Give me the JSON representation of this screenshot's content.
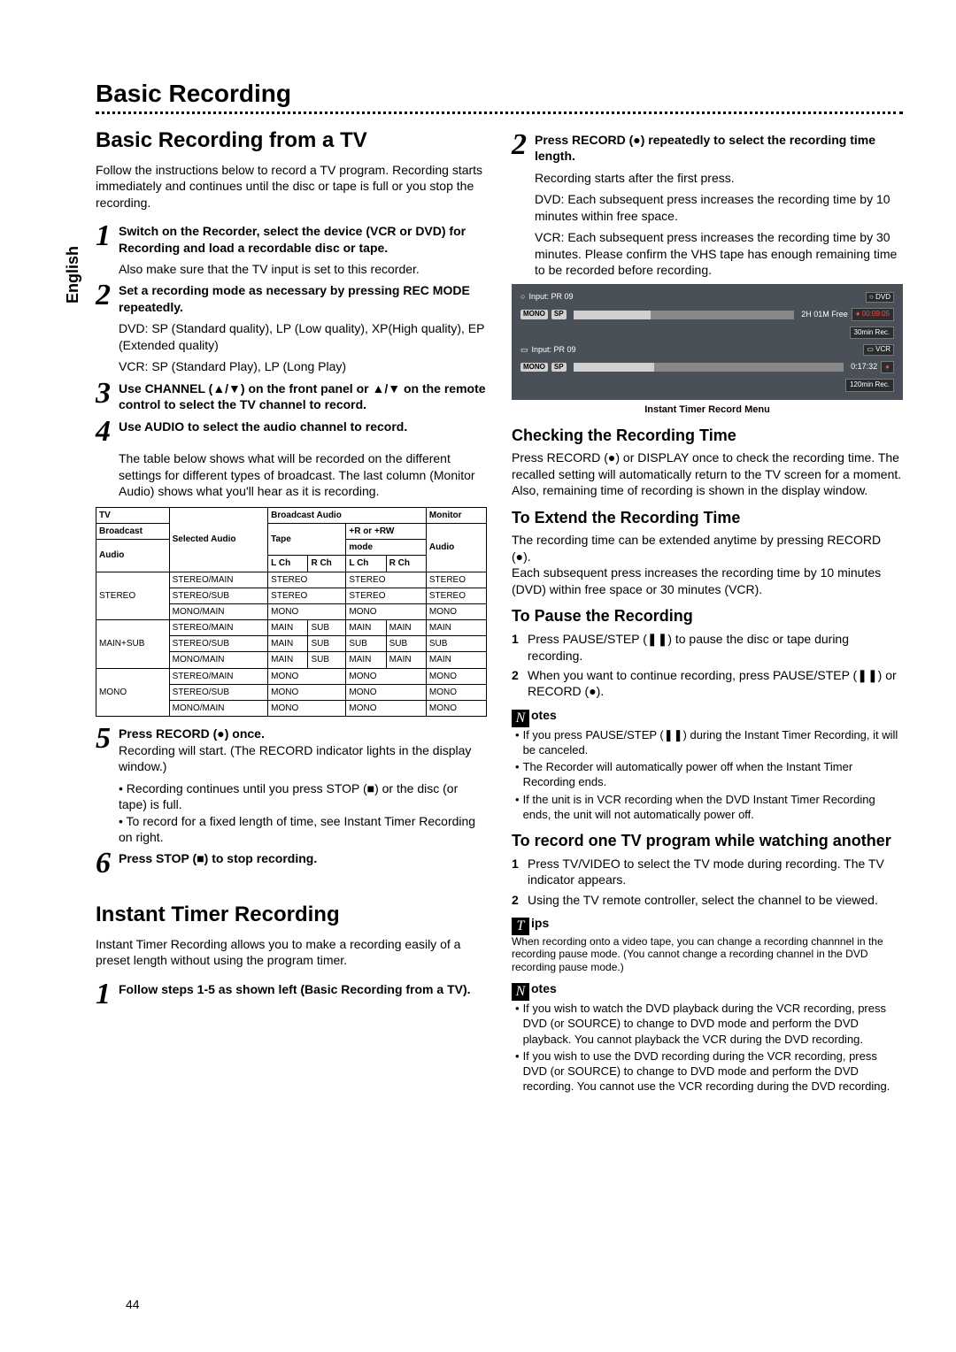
{
  "vert_tab": "English",
  "top_title": "Basic Recording",
  "left": {
    "h1": "Basic Recording from a TV",
    "intro": "Follow the instructions below to record a TV program. Recording starts immediately and continues until the disc or tape is full or you stop the recording.",
    "step1": "Switch on the Recorder, select the device (VCR or DVD) for Recording and load a recordable disc or tape.",
    "step1_sub": "Also make sure that the TV input is set to this recorder.",
    "step2": "Set a recording mode as necessary by pressing REC MODE repeatedly.",
    "step2_sub1": "DVD: SP (Standard quality), LP (Low quality), XP(High quality), EP (Extended quality)",
    "step2_sub2": "VCR: SP (Standard Play), LP (Long Play)",
    "step3": "Use CHANNEL (▲/▼) on the front panel or ▲/▼ on the remote control to select the TV channel to record.",
    "step4": "Use AUDIO to select the audio channel to record.",
    "step4_sub": "The table below shows what will be recorded on the different settings for different types of broadcast. The last column (Monitor Audio) shows what you'll hear as it is recording.",
    "table": {
      "hdr": {
        "tv": "TV",
        "sel": "Selected Audio",
        "bcast": "Broadcast Audio",
        "mon": "Monitor"
      },
      "hdr2": {
        "bcast": "Broadcast",
        "tape": "Tape",
        "rw": "+R or +RW",
        "audio": "Audio"
      },
      "hdr3": {
        "audio": "Audio",
        "mode": "mode"
      },
      "hdr4": {
        "lch1": "L Ch",
        "rch1": "R Ch",
        "lch2": "L Ch",
        "rch2": "R Ch"
      },
      "rows": [
        {
          "a": "STEREO",
          "b": "STEREO/MAIN",
          "c": "STEREO",
          "d": "",
          "e": "STEREO",
          "f": "",
          "g": "STEREO"
        },
        {
          "a": "",
          "b": "STEREO/SUB",
          "c": "STEREO",
          "d": "",
          "e": "STEREO",
          "f": "",
          "g": "STEREO"
        },
        {
          "a": "",
          "b": "MONO/MAIN",
          "c": "MONO",
          "d": "",
          "e": "MONO",
          "f": "",
          "g": "MONO"
        },
        {
          "a": "MAIN+SUB",
          "b": "STEREO/MAIN",
          "c": "MAIN",
          "d": "SUB",
          "e": "MAIN",
          "f": "MAIN",
          "g": "MAIN"
        },
        {
          "a": "",
          "b": "STEREO/SUB",
          "c": "MAIN",
          "d": "SUB",
          "e": "SUB",
          "f": "SUB",
          "g": "SUB"
        },
        {
          "a": "",
          "b": "MONO/MAIN",
          "c": "MAIN",
          "d": "SUB",
          "e": "MAIN",
          "f": "MAIN",
          "g": "MAIN"
        },
        {
          "a": "MONO",
          "b": "STEREO/MAIN",
          "c": "MONO",
          "d": "",
          "e": "MONO",
          "f": "",
          "g": "MONO"
        },
        {
          "a": "",
          "b": "STEREO/SUB",
          "c": "MONO",
          "d": "",
          "e": "MONO",
          "f": "",
          "g": "MONO"
        },
        {
          "a": "",
          "b": "MONO/MAIN",
          "c": "MONO",
          "d": "",
          "e": "MONO",
          "f": "",
          "g": "MONO"
        }
      ]
    },
    "step5": "Press RECORD (●) once.",
    "step5_sub": "Recording will start. (The RECORD indicator lights in the display window.)",
    "step5_b1": "Recording continues until you press STOP (■) or the disc (or tape) is full.",
    "step5_b2": "To record for a fixed length of time, see Instant Timer Recording on right.",
    "step6": "Press STOP (■) to stop recording.",
    "h1b": "Instant Timer Recording",
    "itr_intro": "Instant Timer Recording allows you to make a recording easily of a preset length without using the program timer.",
    "itr_step1": "Follow steps 1-5 as shown left (Basic Recording from a TV)."
  },
  "right": {
    "step2": "Press RECORD (●) repeatedly to select the recording time length.",
    "step2_sub1": "Recording starts after the first press.",
    "step2_sub2": "DVD: Each subsequent press increases the recording time by 10 minutes within free space.",
    "step2_sub3": "VCR: Each subsequent press increases the recording time by 30 minutes. Please confirm the VHS tape has enough remaining time to be recorded before recording.",
    "screenshot": {
      "row1_input": "Input: PR 09",
      "row1_mono": "MONO",
      "row1_sp": "SP",
      "row1_free": "2H  01M  Free",
      "row1_dvd": "DVD",
      "row1_time": "00:09:05",
      "row1_rec": "30min Rec.",
      "row2_input": "Input: PR 09",
      "row2_mono": "MONO",
      "row2_sp": "SP",
      "row2_time": "0:17:32",
      "row2_vcr": "VCR",
      "row2_rec": "120min Rec.",
      "caption": "Instant Timer Record Menu"
    },
    "h2a": "Checking the Recording Time",
    "check_p1": "Press RECORD (●) or DISPLAY once to check the recording time. The recalled setting will automatically return to the TV screen for a moment.",
    "check_p2": "Also, remaining time of recording is shown in the display window.",
    "h2b": "To Extend the Recording Time",
    "ext_p1": "The recording time can be extended anytime by pressing RECORD (●).",
    "ext_p2": "Each subsequent press increases the recording time by 10 minutes (DVD) within free space or 30 minutes (VCR).",
    "h2c": "To Pause the Recording",
    "pause_1": "Press PAUSE/STEP (❚❚) to pause the disc or tape during recording.",
    "pause_2": "When you want to continue recording, press PAUSE/STEP (❚❚) or RECORD (●).",
    "notes_label": "otes",
    "notes_icon": "N",
    "note1": "If you press PAUSE/STEP (❚❚) during the Instant Timer Recording, it will be canceled.",
    "note2": "The Recorder will automatically power off when the Instant Timer Recording ends.",
    "note3": "If the unit is in VCR recording when the DVD Instant Timer Recording ends, the unit will not automatically power off.",
    "h2d": "To record one TV program while watching another",
    "rec_1": "Press TV/VIDEO to select the TV mode during recording. The TV indicator appears.",
    "rec_2": "Using the TV remote controller, select the channel to be viewed.",
    "tips_icon": "T",
    "tips_label": "ips",
    "tips_text": "When recording onto a video tape, you can change a recording channnel in the recording pause mode. (You cannot change a recording channel in the DVD recording pause mode.)",
    "notes2_1": "If you wish to watch the DVD playback during the VCR recording, press DVD (or SOURCE) to change to DVD mode and perform the DVD playback. You cannot playback the VCR during the DVD recording.",
    "notes2_2": "If you wish to use the DVD recording during the VCR recording, press DVD (or SOURCE) to change to DVD mode and perform the DVD recording. You cannot use the VCR recording during the DVD recording."
  },
  "page_number": "44"
}
